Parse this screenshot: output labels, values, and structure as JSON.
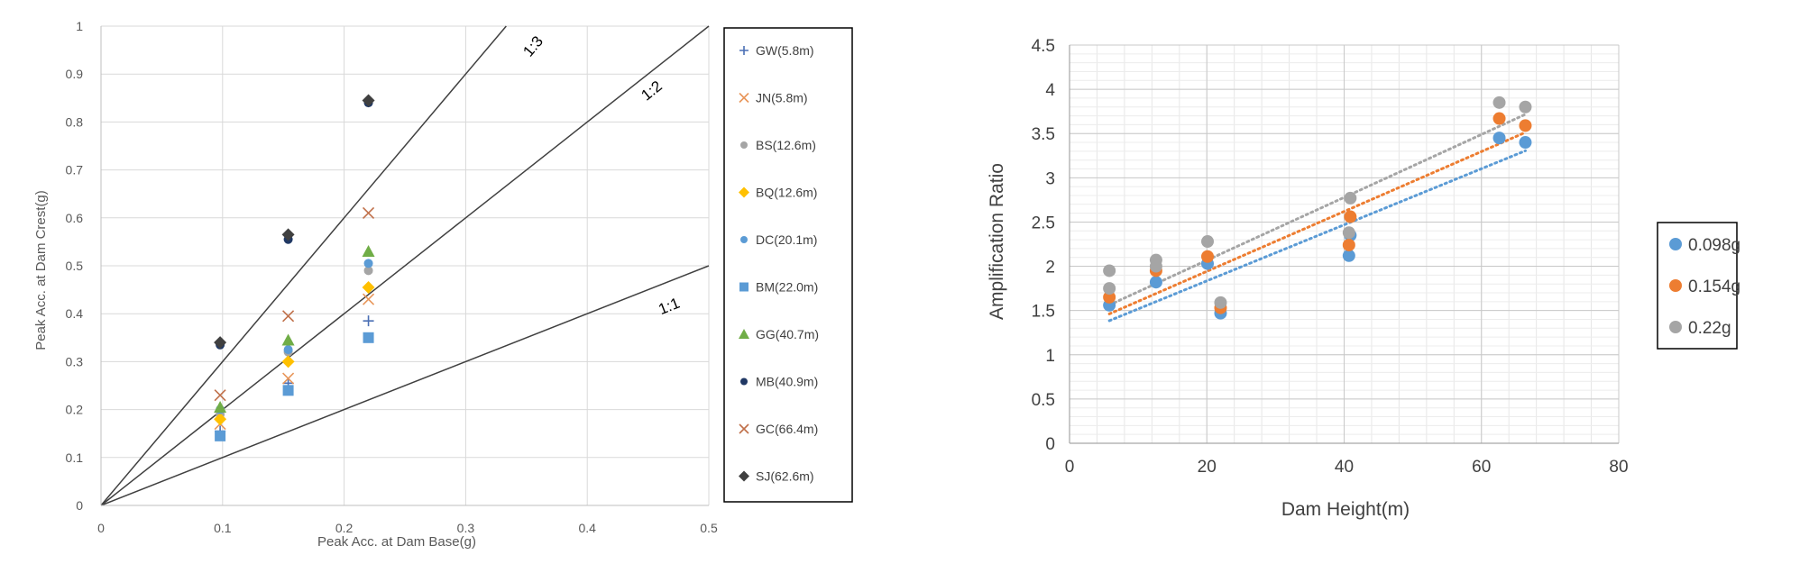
{
  "chart_data": [
    {
      "type": "scatter",
      "xlabel": "Peak Acc. at Dam Base(g)",
      "ylabel": "Peak Acc. at Dam Crest(g)",
      "xlim": [
        0,
        0.5
      ],
      "ylim": [
        0,
        1
      ],
      "xticks": [
        "0",
        "0.1",
        "0.2",
        "0.3",
        "0.4",
        "0.5"
      ],
      "yticks": [
        "0",
        "0.1",
        "0.2",
        "0.3",
        "0.4",
        "0.5",
        "0.6",
        "0.7",
        "0.8",
        "0.9",
        "1"
      ],
      "grid": true,
      "legend_position": "right",
      "reference_lines": [
        {
          "label": "1:3",
          "slope": 3
        },
        {
          "label": "1:2",
          "slope": 2
        },
        {
          "label": "1:1",
          "slope": 1
        }
      ],
      "series": [
        {
          "name": "GW(5.8m)",
          "marker": "plus",
          "color": "#4a6fb5",
          "x": [
            0.098,
            0.154,
            0.22
          ],
          "y": [
            0.155,
            0.255,
            0.385
          ]
        },
        {
          "name": "JN(5.8m)",
          "marker": "x",
          "color": "#e8965a",
          "x": [
            0.098,
            0.154,
            0.22
          ],
          "y": [
            0.17,
            0.265,
            0.43
          ]
        },
        {
          "name": "BS(12.6m)",
          "marker": "circle",
          "color": "#a5a5a5",
          "x": [
            0.098,
            0.154,
            0.22
          ],
          "y": [
            0.19,
            0.32,
            0.49
          ]
        },
        {
          "name": "BQ(12.6m)",
          "marker": "diamond",
          "color": "#ffc000",
          "x": [
            0.098,
            0.154,
            0.22
          ],
          "y": [
            0.18,
            0.3,
            0.455
          ]
        },
        {
          "name": "DC(20.1m)",
          "marker": "circle",
          "color": "#5b9bd5",
          "x": [
            0.098,
            0.154,
            0.22
          ],
          "y": [
            0.2,
            0.325,
            0.505
          ]
        },
        {
          "name": "BM(22.0m)",
          "marker": "square",
          "color": "#5b9bd5",
          "x": [
            0.098,
            0.154,
            0.22
          ],
          "y": [
            0.145,
            0.24,
            0.35
          ]
        },
        {
          "name": "GG(40.7m)",
          "marker": "triangle",
          "color": "#70ad47",
          "x": [
            0.098,
            0.154,
            0.22
          ],
          "y": [
            0.205,
            0.345,
            0.53
          ]
        },
        {
          "name": "MB(40.9m)",
          "marker": "circle",
          "color": "#203864",
          "x": [
            0.098,
            0.154,
            0.22
          ],
          "y": [
            0.335,
            0.555,
            0.84
          ]
        },
        {
          "name": "GC(66.4m)",
          "marker": "x",
          "color": "#c0704a",
          "x": [
            0.098,
            0.154,
            0.22
          ],
          "y": [
            0.23,
            0.395,
            0.61
          ]
        },
        {
          "name": "SJ(62.6m)",
          "marker": "diamond",
          "color": "#404040",
          "x": [
            0.098,
            0.154,
            0.22
          ],
          "y": [
            0.34,
            0.565,
            0.845
          ]
        }
      ]
    },
    {
      "type": "scatter",
      "xlabel": "Dam Height(m)",
      "ylabel": "Amplification Ratio",
      "xlim": [
        0,
        80
      ],
      "ylim": [
        0,
        4.5
      ],
      "xticks": [
        "0",
        "20",
        "40",
        "60",
        "80"
      ],
      "yticks": [
        "0",
        "0.5",
        "1",
        "1.5",
        "2",
        "2.5",
        "3",
        "3.5",
        "4",
        "4.5"
      ],
      "grid": true,
      "minor_grid": true,
      "legend_position": "right",
      "trendlines": "linear, dotted",
      "series": [
        {
          "name": "0.098g",
          "color": "#5b9bd5",
          "x": [
            5.8,
            12.6,
            20.1,
            22.0,
            40.7,
            40.9,
            62.6,
            66.4
          ],
          "y": [
            1.56,
            1.82,
            2.03,
            1.47,
            2.12,
            2.35,
            3.45,
            3.4
          ]
        },
        {
          "name": "0.154g",
          "color": "#ed7d31",
          "x": [
            5.8,
            12.6,
            20.1,
            22.0,
            40.7,
            40.9,
            62.6,
            66.4
          ],
          "y": [
            1.65,
            1.95,
            2.11,
            1.53,
            2.24,
            2.56,
            3.67,
            3.59
          ]
        },
        {
          "name": "0.22g",
          "color": "#a5a5a5",
          "x": [
            5.8,
            12.6,
            20.1,
            22.0,
            40.7,
            40.9,
            62.6,
            66.4
          ],
          "y": [
            1.75,
            2.07,
            2.28,
            1.59,
            2.38,
            2.77,
            3.85,
            3.8
          ]
        },
        {
          "name": "",
          "color": "#a5a5a5",
          "x": [
            5.8,
            12.6
          ],
          "y": [
            1.95,
            2.0
          ]
        }
      ]
    }
  ]
}
